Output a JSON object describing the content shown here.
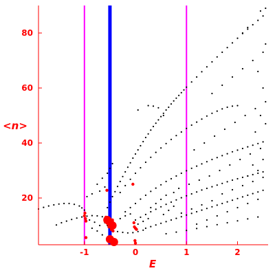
{
  "chart_data": {
    "type": "scatter",
    "xlabel": "E",
    "ylabel": "<n>",
    "xlim": [
      -1.9,
      2.6
    ],
    "ylim": [
      3,
      90
    ],
    "x_ticks": [
      -1,
      0,
      1,
      2
    ],
    "y_ticks": [
      20,
      40,
      60,
      80
    ],
    "x_tick_labels": [
      "-1",
      "0",
      "1",
      "2"
    ],
    "y_tick_labels": [
      "20",
      "40",
      "60",
      "80"
    ],
    "grid": false,
    "vertical_lines": [
      {
        "x": -1.0,
        "color": "#ff00ff"
      },
      {
        "x": -0.5,
        "color": "#0000ff"
      },
      {
        "x": 1.0,
        "color": "#ff00ff"
      }
    ],
    "series": [
      {
        "color": "#000000",
        "points": [
          [
            -1.9,
            16.0
          ],
          [
            -1.8,
            16.6
          ],
          [
            -1.7,
            17.1
          ],
          [
            -1.6,
            17.5
          ],
          [
            -1.5,
            17.8
          ],
          [
            -1.4,
            18.0
          ],
          [
            -1.3,
            18.0
          ],
          [
            -1.2,
            17.7
          ],
          [
            -1.1,
            17.1
          ],
          [
            -1.05,
            16.4
          ],
          [
            -1.0,
            15.6
          ],
          [
            -1.55,
            10.2
          ],
          [
            -1.45,
            11.0
          ],
          [
            -1.35,
            11.6
          ],
          [
            -1.25,
            12.2
          ],
          [
            -1.15,
            12.7
          ],
          [
            -1.05,
            13.1
          ],
          [
            -0.95,
            13.4
          ],
          [
            -0.85,
            13.6
          ],
          [
            -0.75,
            13.5
          ],
          [
            -0.65,
            13.2
          ],
          [
            -0.6,
            11.0
          ],
          [
            -0.55,
            10.0
          ],
          [
            -0.5,
            9.2
          ],
          [
            -0.45,
            8.4
          ],
          [
            -0.35,
            7.8
          ],
          [
            -0.25,
            7.5
          ],
          [
            -0.15,
            7.3
          ],
          [
            -0.05,
            7.4
          ],
          [
            0.05,
            7.8
          ],
          [
            0.15,
            8.3
          ],
          [
            -0.7,
            10.0
          ],
          [
            -0.8,
            11.2
          ],
          [
            -0.9,
            12.0
          ],
          [
            -0.75,
            8.0
          ],
          [
            -0.85,
            9.0
          ],
          [
            -0.65,
            6.6
          ],
          [
            -0.55,
            16.5
          ],
          [
            -0.5,
            18.5
          ],
          [
            -0.45,
            20.5
          ],
          [
            -0.4,
            22.3
          ],
          [
            -0.35,
            24.2
          ],
          [
            -0.3,
            26.0
          ],
          [
            -0.25,
            27.8
          ],
          [
            -0.2,
            29.5
          ],
          [
            -0.15,
            31.2
          ],
          [
            -0.1,
            32.8
          ],
          [
            -0.05,
            34.5
          ],
          [
            0.0,
            36.0
          ],
          [
            0.05,
            37.5
          ],
          [
            0.1,
            39.0
          ],
          [
            0.15,
            40.5
          ],
          [
            0.2,
            42.0
          ],
          [
            0.25,
            43.3
          ],
          [
            0.3,
            44.7
          ],
          [
            0.35,
            46.0
          ],
          [
            0.4,
            47.2
          ],
          [
            0.45,
            48.4
          ],
          [
            0.5,
            49.6
          ],
          [
            0.55,
            50.8
          ],
          [
            0.6,
            52.0
          ],
          [
            0.65,
            53.0
          ],
          [
            0.7,
            54.2
          ],
          [
            0.75,
            55.3
          ],
          [
            0.8,
            56.3
          ],
          [
            0.85,
            57.3
          ],
          [
            0.9,
            58.3
          ],
          [
            0.95,
            59.3
          ],
          [
            1.0,
            60.3
          ],
          [
            1.1,
            62.2
          ],
          [
            1.2,
            64.0
          ],
          [
            1.3,
            65.9
          ],
          [
            1.4,
            67.7
          ],
          [
            1.5,
            69.5
          ],
          [
            1.6,
            71.3
          ],
          [
            1.7,
            73.0
          ],
          [
            1.8,
            74.7
          ],
          [
            1.9,
            76.4
          ],
          [
            2.0,
            78.1
          ],
          [
            2.1,
            79.8
          ],
          [
            2.2,
            81.4
          ],
          [
            2.3,
            83.0
          ],
          [
            2.4,
            84.6
          ],
          [
            2.5,
            86.2
          ],
          [
            0.25,
            53.6
          ],
          [
            0.35,
            53.4
          ],
          [
            0.45,
            52.8
          ],
          [
            0.05,
            52.0
          ],
          [
            0.55,
            50.0
          ],
          [
            -0.75,
            25.0
          ],
          [
            -0.65,
            27.2
          ],
          [
            -0.55,
            29.0
          ],
          [
            -0.5,
            30.8
          ],
          [
            -0.45,
            32.5
          ],
          [
            -0.6,
            24.0
          ],
          [
            -0.7,
            22.5
          ],
          [
            -0.85,
            21.5
          ],
          [
            -0.95,
            20.5
          ],
          [
            -0.3,
            22.0
          ],
          [
            -0.2,
            24.5
          ],
          [
            -0.1,
            26.8
          ],
          [
            0.0,
            29.0
          ],
          [
            0.1,
            31.0
          ],
          [
            0.2,
            33.0
          ],
          [
            0.3,
            34.8
          ],
          [
            0.4,
            36.6
          ],
          [
            0.5,
            38.2
          ],
          [
            0.6,
            39.8
          ],
          [
            0.7,
            41.3
          ],
          [
            0.8,
            42.7
          ],
          [
            0.9,
            44.0
          ],
          [
            1.0,
            45.3
          ],
          [
            1.1,
            46.5
          ],
          [
            1.2,
            47.6
          ],
          [
            1.3,
            48.7
          ],
          [
            1.4,
            49.8
          ],
          [
            1.5,
            50.8
          ],
          [
            1.6,
            51.6
          ],
          [
            1.7,
            52.4
          ],
          [
            1.8,
            53.0
          ],
          [
            1.9,
            53.4
          ],
          [
            2.0,
            53.6
          ],
          [
            -0.2,
            15.0
          ],
          [
            -0.1,
            16.5
          ],
          [
            0.0,
            18.0
          ],
          [
            0.1,
            19.6
          ],
          [
            0.2,
            21.0
          ],
          [
            0.3,
            22.4
          ],
          [
            0.4,
            23.6
          ],
          [
            0.5,
            24.8
          ],
          [
            0.6,
            26.0
          ],
          [
            0.7,
            27.0
          ],
          [
            0.8,
            28.0
          ],
          [
            0.9,
            29.0
          ],
          [
            1.0,
            29.9
          ],
          [
            1.1,
            30.8
          ],
          [
            1.2,
            31.6
          ],
          [
            1.3,
            32.4
          ],
          [
            1.4,
            33.2
          ],
          [
            1.5,
            34.0
          ],
          [
            1.6,
            34.7
          ],
          [
            1.7,
            35.4
          ],
          [
            1.8,
            36.1
          ],
          [
            1.9,
            36.8
          ],
          [
            2.0,
            37.4
          ],
          [
            2.1,
            38.0
          ],
          [
            2.2,
            38.6
          ],
          [
            2.3,
            39.2
          ],
          [
            2.4,
            39.8
          ],
          [
            2.5,
            40.4
          ],
          [
            0.0,
            12.0
          ],
          [
            0.1,
            13.0
          ],
          [
            0.2,
            14.0
          ],
          [
            0.3,
            15.0
          ],
          [
            0.4,
            15.9
          ],
          [
            0.5,
            16.8
          ],
          [
            0.6,
            17.7
          ],
          [
            0.7,
            18.5
          ],
          [
            0.8,
            19.3
          ],
          [
            0.9,
            20.1
          ],
          [
            1.0,
            20.8
          ],
          [
            1.1,
            21.5
          ],
          [
            1.2,
            22.2
          ],
          [
            1.3,
            22.9
          ],
          [
            1.4,
            23.5
          ],
          [
            1.5,
            24.1
          ],
          [
            1.6,
            24.7
          ],
          [
            1.7,
            25.3
          ],
          [
            1.8,
            25.9
          ],
          [
            1.9,
            26.5
          ],
          [
            2.0,
            27.0
          ],
          [
            2.1,
            27.5
          ],
          [
            2.2,
            28.0
          ],
          [
            2.3,
            28.5
          ],
          [
            2.4,
            29.0
          ],
          [
            2.5,
            29.5
          ],
          [
            0.2,
            9.0
          ],
          [
            0.3,
            9.6
          ],
          [
            0.4,
            10.2
          ],
          [
            0.5,
            10.8
          ],
          [
            0.6,
            11.4
          ],
          [
            0.7,
            12.0
          ],
          [
            0.8,
            12.6
          ],
          [
            0.9,
            13.2
          ],
          [
            1.0,
            13.8
          ],
          [
            1.1,
            14.4
          ],
          [
            1.2,
            15.0
          ],
          [
            1.3,
            15.6
          ],
          [
            1.4,
            16.2
          ],
          [
            1.5,
            16.8
          ],
          [
            1.6,
            17.4
          ],
          [
            1.7,
            18.0
          ],
          [
            1.8,
            18.6
          ],
          [
            1.9,
            19.2
          ],
          [
            2.0,
            19.8
          ],
          [
            2.1,
            20.4
          ],
          [
            2.2,
            21.0
          ],
          [
            2.3,
            21.6
          ],
          [
            2.4,
            22.2
          ],
          [
            2.5,
            22.8
          ],
          [
            0.6,
            7.0
          ],
          [
            0.8,
            7.6
          ],
          [
            1.0,
            8.2
          ],
          [
            1.2,
            8.9
          ],
          [
            1.4,
            9.6
          ],
          [
            1.6,
            10.3
          ],
          [
            1.8,
            11.0
          ],
          [
            2.0,
            11.7
          ],
          [
            2.2,
            12.4
          ],
          [
            2.4,
            13.1
          ],
          [
            0.75,
            22.0
          ],
          [
            0.85,
            23.5
          ],
          [
            1.05,
            25.0
          ],
          [
            1.25,
            26.5
          ],
          [
            1.45,
            28.0
          ],
          [
            1.65,
            30.0
          ],
          [
            1.85,
            32.0
          ],
          [
            2.05,
            34.0
          ],
          [
            2.25,
            36.0
          ],
          [
            2.45,
            38.0
          ],
          [
            1.15,
            37.5
          ],
          [
            1.35,
            40.0
          ],
          [
            1.55,
            42.5
          ],
          [
            1.75,
            45.0
          ],
          [
            1.95,
            47.5
          ],
          [
            2.15,
            50.0
          ],
          [
            2.35,
            52.5
          ],
          [
            2.55,
            55.0
          ],
          [
            1.5,
            58.0
          ],
          [
            1.7,
            61.0
          ],
          [
            1.9,
            64.0
          ],
          [
            2.1,
            67.0
          ],
          [
            2.3,
            70.0
          ],
          [
            2.5,
            73.0
          ],
          [
            2.4,
            30.0
          ],
          [
            2.3,
            32.0
          ],
          [
            2.5,
            34.0
          ],
          [
            2.2,
            28.0
          ],
          [
            2.55,
            47.0
          ],
          [
            2.45,
            50.0
          ],
          [
            2.35,
            44.0
          ],
          [
            2.5,
            60.0
          ],
          [
            2.4,
            66.0
          ],
          [
            2.55,
            76.0
          ],
          [
            2.45,
            88.0
          ],
          [
            2.55,
            89.0
          ],
          [
            2.1,
            80.0
          ],
          [
            2.2,
            82.0
          ],
          [
            0.9,
            14.5
          ],
          [
            1.1,
            16.0
          ],
          [
            1.3,
            17.5
          ],
          [
            1.5,
            19.0
          ],
          [
            1.7,
            21.5
          ],
          [
            1.9,
            23.0
          ],
          [
            2.1,
            24.5
          ],
          [
            2.3,
            26.0
          ],
          [
            2.5,
            27.5
          ],
          [
            1.2,
            10.5
          ],
          [
            1.4,
            12.0
          ],
          [
            1.6,
            13.5
          ],
          [
            1.8,
            15.0
          ],
          [
            2.0,
            16.5
          ],
          [
            2.2,
            18.0
          ],
          [
            2.4,
            19.5
          ],
          [
            0.3,
            16.5
          ],
          [
            0.4,
            18.0
          ],
          [
            0.5,
            19.5
          ],
          [
            0.6,
            21.0
          ],
          [
            0.55,
            14.0
          ],
          [
            0.65,
            15.5
          ],
          [
            0.75,
            17.0
          ],
          [
            -0.3,
            12.5
          ],
          [
            -0.2,
            13.5
          ],
          [
            -0.1,
            14.2
          ],
          [
            0.05,
            10.5
          ],
          [
            0.15,
            11.5
          ],
          [
            0.25,
            12.5
          ]
        ]
      },
      {
        "color": "#ff0000",
        "points": [
          [
            -1.0,
            13.5
          ],
          [
            -0.98,
            12.5
          ],
          [
            -0.97,
            11.6
          ],
          [
            -0.99,
            14.5
          ],
          [
            -0.97,
            5.6
          ],
          [
            -0.58,
            13.0
          ],
          [
            -0.57,
            12.2
          ],
          [
            -0.56,
            11.5
          ],
          [
            -0.55,
            10.8
          ],
          [
            -0.56,
            22.8
          ],
          [
            -0.52,
            9.5
          ],
          [
            -0.45,
            12.0
          ],
          [
            -0.48,
            11.0
          ],
          [
            -0.42,
            10.5
          ],
          [
            -0.47,
            8.5
          ],
          [
            -0.44,
            8.0
          ],
          [
            -0.05,
            25.0
          ],
          [
            -0.03,
            11.0
          ],
          [
            -0.02,
            9.5
          ],
          [
            0.0,
            9.0
          ],
          [
            0.02,
            8.6
          ],
          [
            -0.01,
            4.5
          ],
          [
            0.0,
            3.6
          ]
        ]
      },
      {
        "color": "#ff0000",
        "big": true,
        "points": [
          [
            -0.55,
            12.0
          ],
          [
            -0.5,
            11.2
          ],
          [
            -0.45,
            10.0
          ],
          [
            -0.5,
            5.0
          ],
          [
            -0.42,
            4.0
          ]
        ]
      }
    ]
  }
}
